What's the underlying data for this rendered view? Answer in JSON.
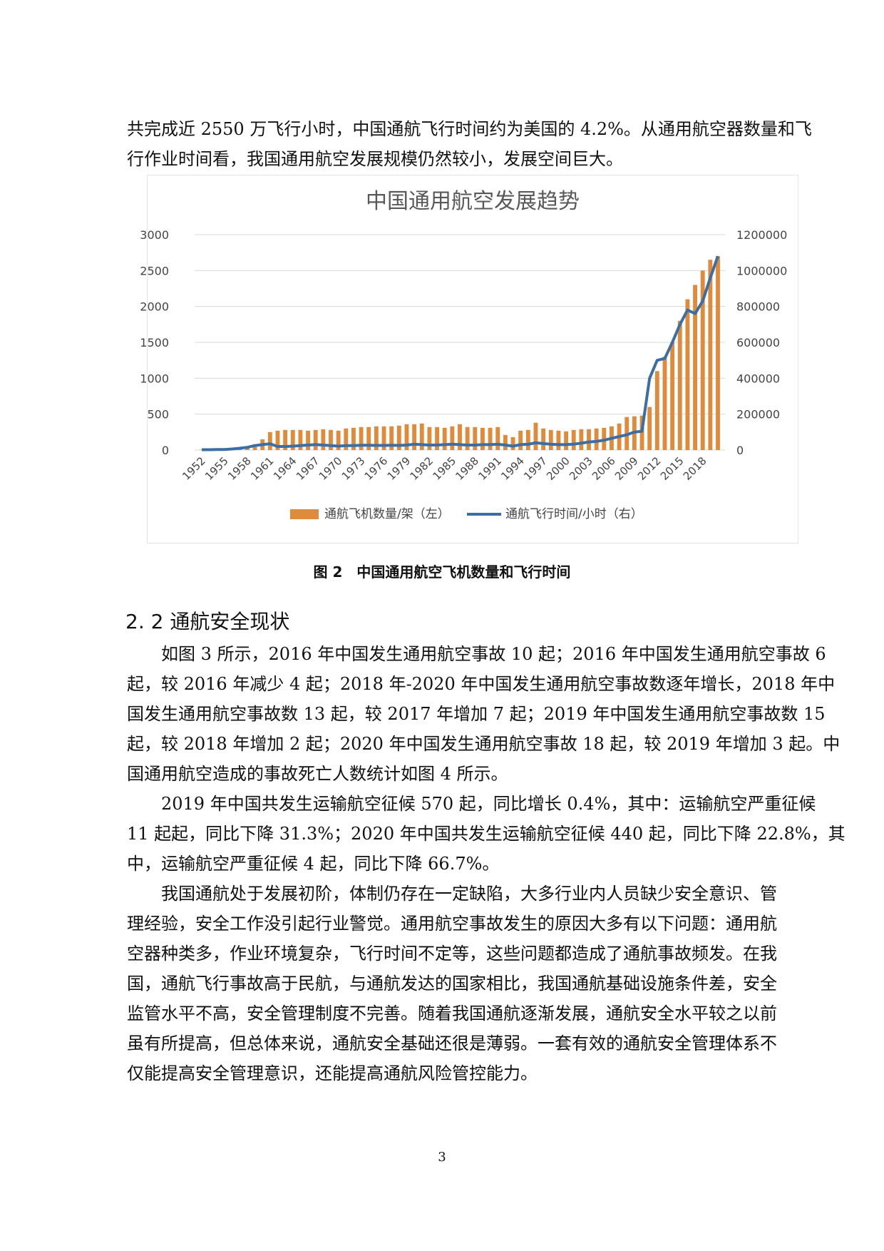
{
  "intro_lines": [
    "共完成近 2550 万飞行小时，中国通航飞行时间约为美国的 4.2%。从通用航空器数量和飞",
    "行作业时间看，我国通用航空发展规模仍然较小，发展空间巨大。"
  ],
  "figure": {
    "caption": "图 2　中国通用航空飞机数量和飞行时间"
  },
  "chart_data": {
    "type": "bar",
    "title": "中国通用航空发展趋势",
    "xlabel": "",
    "ylabel": "",
    "y_left_lim": [
      0,
      3000
    ],
    "y_left_ticks": [
      "0",
      "500",
      "1000",
      "1500",
      "2000",
      "2500",
      "3000"
    ],
    "y_right_lim": [
      0,
      1200000
    ],
    "y_right_ticks": [
      "0",
      "200000",
      "400000",
      "600000",
      "800000",
      "1000000",
      "1200000"
    ],
    "x_tick_labels": [
      "1952",
      "1955",
      "1958",
      "1961",
      "1964",
      "1967",
      "1970",
      "1973",
      "1976",
      "1979",
      "1982",
      "1985",
      "1988",
      "1991",
      "1994",
      "1997",
      "2000",
      "2003",
      "2006",
      "2009",
      "2012",
      "2015",
      "2018"
    ],
    "legend_position": "bottom",
    "grid": true,
    "colors": {
      "bars": "#e08a3c",
      "line": "#3a6ea5",
      "grid": "#d9d9d9"
    },
    "x": [
      1952,
      1953,
      1954,
      1955,
      1956,
      1957,
      1958,
      1959,
      1960,
      1961,
      1962,
      1963,
      1964,
      1965,
      1966,
      1967,
      1968,
      1969,
      1970,
      1971,
      1972,
      1973,
      1974,
      1975,
      1976,
      1977,
      1978,
      1979,
      1980,
      1981,
      1982,
      1983,
      1984,
      1985,
      1986,
      1987,
      1988,
      1989,
      1990,
      1991,
      1992,
      1993,
      1994,
      1995,
      1996,
      1997,
      1998,
      1999,
      2000,
      2001,
      2002,
      2003,
      2004,
      2005,
      2006,
      2007,
      2008,
      2009,
      2010,
      2011,
      2012,
      2013,
      2014,
      2015,
      2016,
      2017,
      2018,
      2019,
      2020
    ],
    "series": [
      {
        "name": "通航飞机数量/架（左）",
        "axis": "left",
        "values": [
          5,
          5,
          10,
          10,
          20,
          30,
          40,
          80,
          150,
          250,
          270,
          280,
          280,
          280,
          270,
          280,
          290,
          280,
          270,
          300,
          310,
          320,
          320,
          330,
          330,
          330,
          340,
          360,
          360,
          370,
          320,
          320,
          310,
          330,
          360,
          320,
          320,
          310,
          310,
          320,
          210,
          180,
          270,
          280,
          380,
          300,
          280,
          270,
          260,
          280,
          290,
          290,
          300,
          310,
          330,
          370,
          460,
          470,
          480,
          600,
          1100,
          1300,
          1500,
          1800,
          2100,
          2300,
          2500,
          2650,
          2700
        ]
      },
      {
        "name": "通航飞行时间/小时（右）",
        "axis": "right",
        "values": [
          2000,
          2000,
          3000,
          3000,
          6000,
          10000,
          15000,
          25000,
          30000,
          35000,
          20000,
          20000,
          22000,
          25000,
          28000,
          30000,
          28000,
          25000,
          22000,
          25000,
          25000,
          27000,
          27000,
          26000,
          26000,
          27000,
          26000,
          28000,
          32000,
          30000,
          28000,
          28000,
          30000,
          32000,
          30000,
          28000,
          28000,
          30000,
          30000,
          32000,
          28000,
          22000,
          30000,
          32000,
          40000,
          36000,
          32000,
          30000,
          30000,
          33000,
          38000,
          45000,
          48000,
          55000,
          65000,
          75000,
          85000,
          100000,
          105000,
          400000,
          500000,
          510000,
          600000,
          700000,
          780000,
          760000,
          830000,
          960000,
          1080000
        ]
      }
    ]
  },
  "section": {
    "heading": "2. 2 通航安全现状"
  },
  "body_paragraphs": [
    {
      "lines": [
        "如图 3 所示，2016 年中国发生通用航空事故 10 起；2016 年中国发生通用航空事故 6",
        "起，较 2016 年减少 4 起；2018 年-2020 年中国发生通用航空事故数逐年增长，2018 年中",
        "国发生通用航空事故数 13 起，较 2017 年增加 7 起；2019 年中国发生通用航空事故数 15",
        "起，较 2018 年增加 2 起；2020 年中国发生通用航空事故 18 起，较 2019 年增加 3 起。中",
        "国通用航空造成的事故死亡人数统计如图 4 所示。"
      ]
    },
    {
      "lines": [
        "2019 年中国共发生运输航空征候 570 起，同比增长 0.4%，其中：运输航空严重征候",
        "11 起起，同比下降 31.3%；2020 年中国共发生运输航空征候 440 起，同比下降 22.8%，其",
        "中，运输航空严重征候 4 起，同比下降 66.7%。"
      ]
    },
    {
      "lines": [
        "我国通航处于发展初阶，体制仍存在一定缺陷，大多行业内人员缺少安全意识、管",
        "理经验，安全工作没引起行业警觉。通用航空事故发生的原因大多有以下问题：通用航",
        "空器种类多，作业环境复杂，飞行时间不定等，这些问题都造成了通航事故频发。在我",
        "国，通航飞行事故高于民航，与通航发达的国家相比，我国通航基础设施条件差，安全",
        "监管水平不高，安全管理制度不完善。随着我国通航逐渐发展，通航安全水平较之以前",
        "虽有所提高，但总体来说，通航安全基础还很是薄弱。一套有效的通航安全管理体系不",
        "仅能提高安全管理意识，还能提高通航风险管控能力。"
      ]
    }
  ],
  "page_number": "3"
}
